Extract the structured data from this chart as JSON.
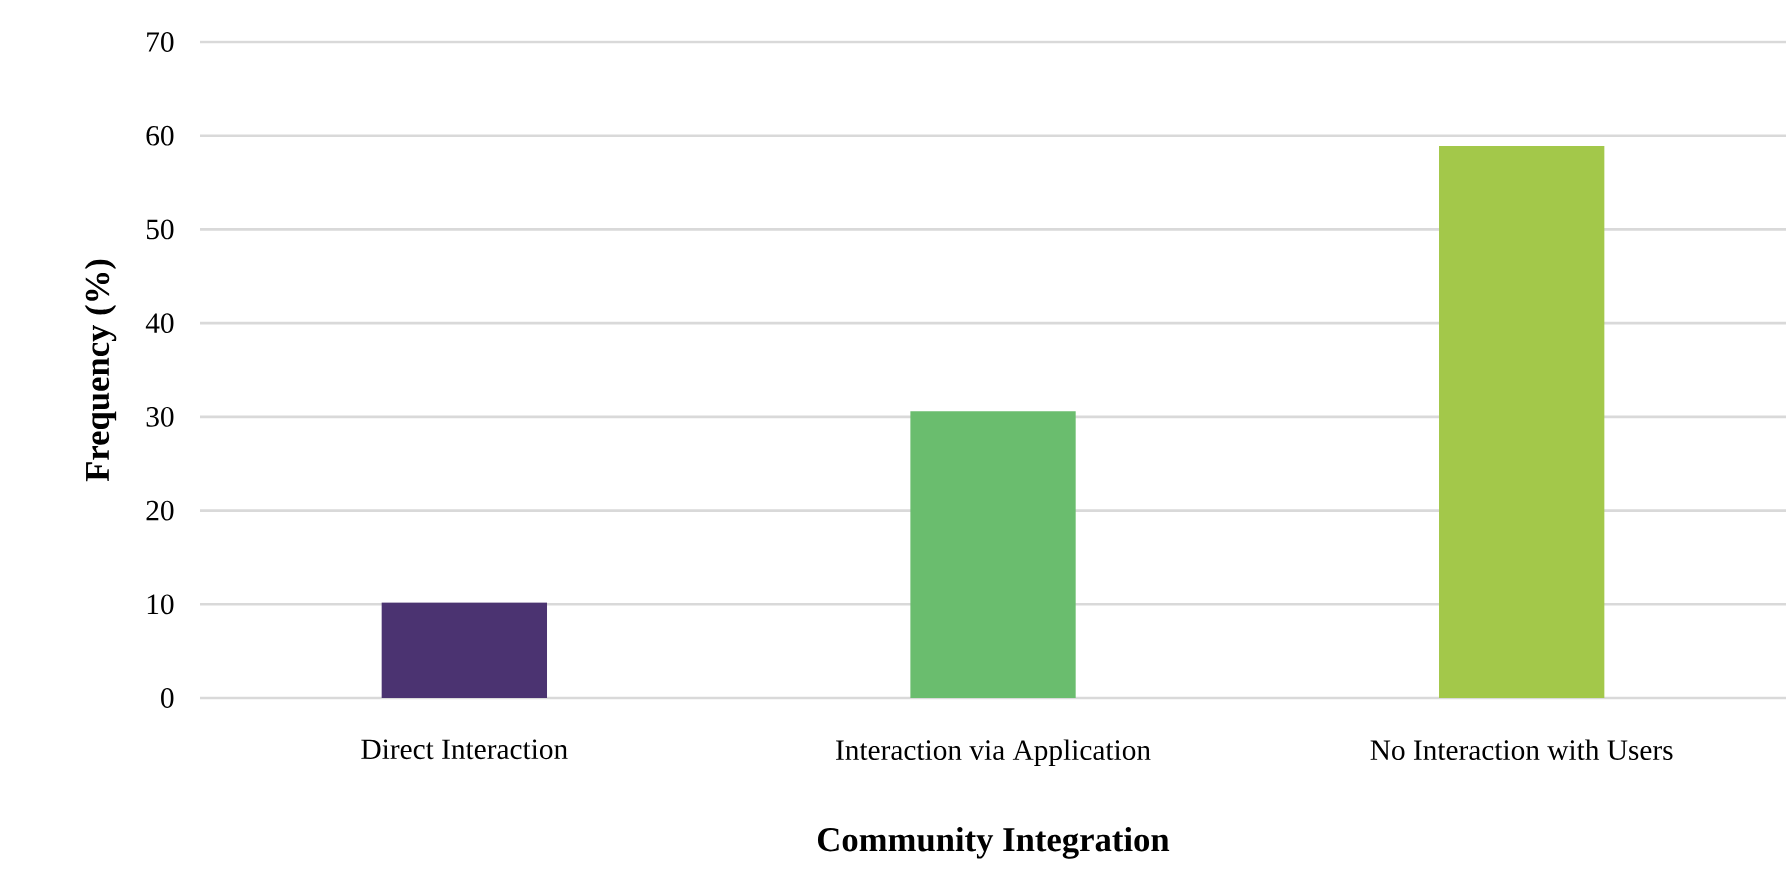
{
  "chart_data": {
    "type": "bar",
    "xlabel": "Community Integration",
    "ylabel": "Frequency (%)",
    "categories": [
      "Direct Interaction",
      "Interaction via Application",
      "No Interaction with Users"
    ],
    "values": [
      10.2,
      30.6,
      58.9
    ],
    "colors": [
      "#4b3371",
      "#6abd6e",
      "#a3c84a"
    ],
    "ylim": [
      0,
      70
    ],
    "yticks": [
      0,
      10,
      20,
      30,
      40,
      50,
      60,
      70
    ],
    "grid": "y"
  }
}
